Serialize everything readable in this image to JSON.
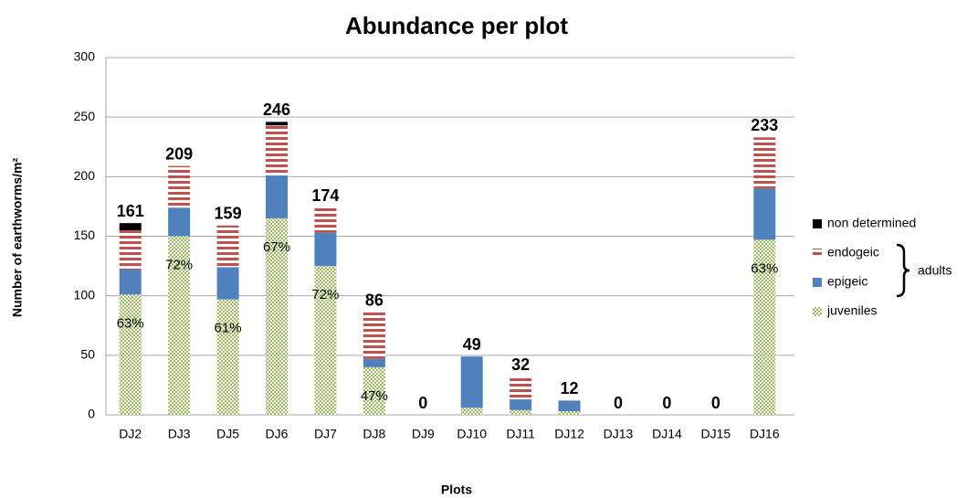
{
  "chart_data": {
    "type": "stacked_bar",
    "title": "Abundance per plot",
    "x_label": "Plots",
    "y_label": "Number of earthworms/m²",
    "categories": [
      "DJ2",
      "DJ3",
      "DJ5",
      "DJ6",
      "DJ7",
      "DJ8",
      "DJ9",
      "DJ10",
      "DJ11",
      "DJ12",
      "DJ13",
      "DJ14",
      "DJ15",
      "DJ16"
    ],
    "series": [
      {
        "name": "juveniles",
        "color": "#9bbb59",
        "pattern": "checker",
        "values": [
          101,
          150,
          97,
          165,
          125,
          40,
          0,
          6,
          4,
          3,
          0,
          0,
          0,
          147
        ]
      },
      {
        "name": "epigeic",
        "color": "#4f81bd",
        "pattern": "solid",
        "values": [
          21,
          24,
          27,
          36,
          28,
          7,
          0,
          43,
          9,
          9,
          0,
          0,
          0,
          43
        ]
      },
      {
        "name": "endogeic",
        "color": "#c0504d",
        "pattern": "stripes",
        "values": [
          33,
          35,
          35,
          42,
          21,
          39,
          0,
          0,
          19,
          0,
          0,
          0,
          0,
          43
        ]
      },
      {
        "name": "non determined",
        "color": "#000000",
        "pattern": "solid",
        "values": [
          6,
          0,
          0,
          3,
          0,
          0,
          0,
          0,
          0,
          0,
          0,
          0,
          0,
          0
        ]
      }
    ],
    "totals": [
      161,
      209,
      159,
      246,
      174,
      86,
      0,
      49,
      32,
      12,
      0,
      0,
      0,
      233
    ],
    "juvenile_shares": [
      "63%",
      "72%",
      "61%",
      "67%",
      "72%",
      "47%",
      null,
      null,
      null,
      null,
      null,
      null,
      null,
      "63%"
    ],
    "legend_group": "adults",
    "ylim": [
      0,
      300
    ],
    "yticks": [
      0,
      50,
      100,
      150,
      200,
      250,
      300
    ],
    "grid": true,
    "legend": "right"
  }
}
